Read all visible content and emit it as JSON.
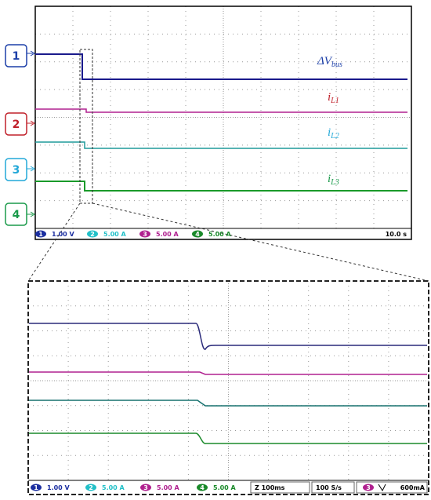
{
  "channel_markers": [
    "1",
    "2",
    "3",
    "4"
  ],
  "trace_labels": [
    {
      "main": "ΔV",
      "sub": "bus"
    },
    {
      "main": "i",
      "sub": "L1"
    },
    {
      "main": "i",
      "sub": "L2"
    },
    {
      "main": "i",
      "sub": "L3"
    }
  ],
  "top_status": {
    "channels": [
      {
        "num": "1",
        "scale": "1.00 V"
      },
      {
        "num": "2",
        "scale": "5.00 A"
      },
      {
        "num": "3",
        "scale": "5.00 A"
      },
      {
        "num": "4",
        "scale": "5.00 A"
      }
    ],
    "timebase": "10.0 s"
  },
  "zoom_status": {
    "channels": [
      {
        "num": "1",
        "scale": "1.00 V"
      },
      {
        "num": "2",
        "scale": "5.00 A"
      },
      {
        "num": "3",
        "scale": "5.00 A"
      },
      {
        "num": "4",
        "scale": "5.00 A"
      }
    ],
    "zoom": "Z 100ms",
    "rate": "100 S/s",
    "trigger": {
      "num": "3",
      "level": "600mA"
    }
  }
}
